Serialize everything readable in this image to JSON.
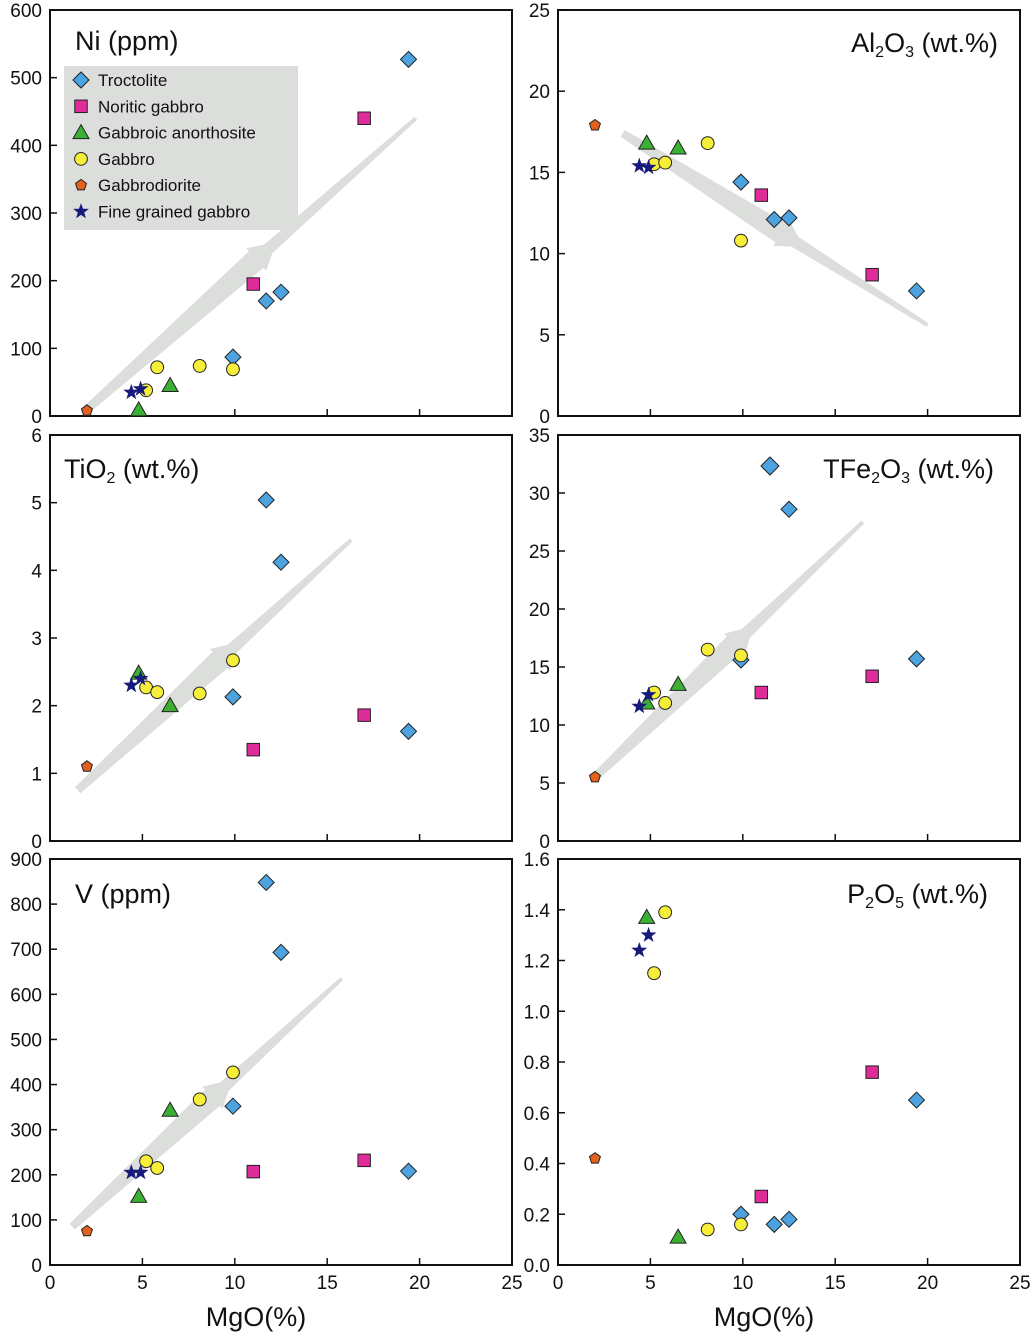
{
  "legend": {
    "items": [
      {
        "key": "troctolite",
        "label": "Troctolite"
      },
      {
        "key": "noritic",
        "label": "Noritic gabbro"
      },
      {
        "key": "anorthosite",
        "label": "Gabbroic anorthosite"
      },
      {
        "key": "gabbro",
        "label": "Gabbro"
      },
      {
        "key": "diorite",
        "label": "Gabbrodiorite"
      },
      {
        "key": "fine",
        "label": "Fine grained gabbro"
      }
    ]
  },
  "styles": {
    "troctolite": {
      "shape": "diamond",
      "color": "#4da3e0"
    },
    "noritic": {
      "shape": "square",
      "color": "#e02b9a"
    },
    "anorthosite": {
      "shape": "triangle",
      "color": "#3cb034"
    },
    "gabbro": {
      "shape": "circle",
      "color": "#f7ee3a"
    },
    "diorite": {
      "shape": "pentagon",
      "color": "#e0621e"
    },
    "fine": {
      "shape": "star",
      "color": "#161a7a"
    },
    "trend_arrow": "#dcdedc"
  },
  "chart_data": [
    {
      "id": "ni",
      "type": "scatter",
      "title": {
        "pre": "Ni (ppm)",
        "sub": "",
        "post": ""
      },
      "xlabel": "",
      "ylabel": "",
      "xlim": [
        0,
        25
      ],
      "ylim": [
        0,
        600
      ],
      "xticks": [],
      "yticks": [
        "0",
        "100",
        "200",
        "300",
        "400",
        "500",
        "600"
      ],
      "trend": {
        "from": [
          1.8,
          5
        ],
        "to": [
          19.8,
          440
        ]
      },
      "series": [
        {
          "name": "Troctolite",
          "key": "troctolite",
          "points": [
            [
              9.9,
              87
            ],
            [
              11.7,
              170
            ],
            [
              12.5,
              183
            ],
            [
              19.4,
              527
            ]
          ]
        },
        {
          "name": "Noritic gabbro",
          "key": "noritic",
          "points": [
            [
              11.0,
              195
            ],
            [
              17.0,
              440
            ]
          ]
        },
        {
          "name": "Gabbroic anorthosite",
          "key": "anorthosite",
          "points": [
            [
              4.8,
              9
            ],
            [
              6.5,
              45
            ]
          ]
        },
        {
          "name": "Gabbro",
          "key": "gabbro",
          "points": [
            [
              5.2,
              38
            ],
            [
              5.8,
              72
            ],
            [
              8.1,
              74
            ],
            [
              9.9,
              69
            ]
          ]
        },
        {
          "name": "Gabbrodiorite",
          "key": "diorite",
          "points": [
            [
              2.0,
              8
            ]
          ]
        },
        {
          "name": "Fine grained gabbro",
          "key": "fine",
          "points": [
            [
              4.4,
              35
            ],
            [
              4.9,
              40
            ]
          ]
        }
      ]
    },
    {
      "id": "al2o3",
      "type": "scatter",
      "title": {
        "pre": "Al",
        "sub": "2",
        "mid": "O",
        "sub2": "3",
        "post": " (wt.%)"
      },
      "xlabel": "",
      "ylabel": "",
      "xlim": [
        0,
        25
      ],
      "ylim": [
        0,
        25
      ],
      "xticks": [],
      "yticks": [
        "0",
        "5",
        "10",
        "15",
        "20",
        "25"
      ],
      "trend": {
        "from": [
          3.5,
          17.4
        ],
        "to": [
          20.0,
          5.6
        ]
      },
      "series": [
        {
          "name": "Troctolite",
          "key": "troctolite",
          "points": [
            [
              9.9,
              14.4
            ],
            [
              11.7,
              12.1
            ],
            [
              12.5,
              12.2
            ],
            [
              19.4,
              7.7
            ]
          ]
        },
        {
          "name": "Noritic gabbro",
          "key": "noritic",
          "points": [
            [
              11.0,
              13.6
            ],
            [
              17.0,
              8.7
            ]
          ]
        },
        {
          "name": "Gabbroic anorthosite",
          "key": "anorthosite",
          "points": [
            [
              4.8,
              16.8
            ],
            [
              6.5,
              16.5
            ]
          ]
        },
        {
          "name": "Gabbro",
          "key": "gabbro",
          "points": [
            [
              5.2,
              15.5
            ],
            [
              5.8,
              15.6
            ],
            [
              8.1,
              16.8
            ],
            [
              9.9,
              10.8
            ]
          ]
        },
        {
          "name": "Gabbrodiorite",
          "key": "diorite",
          "points": [
            [
              2.0,
              17.9
            ]
          ]
        },
        {
          "name": "Fine grained gabbro",
          "key": "fine",
          "points": [
            [
              4.4,
              15.4
            ],
            [
              4.9,
              15.3
            ]
          ]
        }
      ]
    },
    {
      "id": "tio2",
      "type": "scatter",
      "title": {
        "pre": "TiO",
        "sub": "2",
        "post": " (wt.%)"
      },
      "xlabel": "",
      "ylabel": "",
      "xlim": [
        0,
        25
      ],
      "ylim": [
        0,
        6
      ],
      "xticks": [],
      "yticks": [
        "0",
        "1",
        "2",
        "3",
        "4",
        "5",
        "6"
      ],
      "trend": {
        "from": [
          1.5,
          0.75
        ],
        "to": [
          16.3,
          4.45
        ]
      },
      "series": [
        {
          "name": "Troctolite",
          "key": "troctolite",
          "points": [
            [
              11.7,
              5.04
            ],
            [
              12.5,
              4.12
            ],
            [
              9.9,
              2.13
            ],
            [
              19.4,
              1.62
            ]
          ]
        },
        {
          "name": "Noritic gabbro",
          "key": "noritic",
          "points": [
            [
              11.0,
              1.35
            ],
            [
              17.0,
              1.86
            ]
          ]
        },
        {
          "name": "Gabbroic anorthosite",
          "key": "anorthosite",
          "points": [
            [
              4.8,
              2.48
            ],
            [
              6.5,
              2.0
            ]
          ]
        },
        {
          "name": "Gabbro",
          "key": "gabbro",
          "points": [
            [
              5.2,
              2.27
            ],
            [
              5.8,
              2.2
            ],
            [
              8.1,
              2.18
            ],
            [
              9.9,
              2.67
            ]
          ]
        },
        {
          "name": "Gabbrodiorite",
          "key": "diorite",
          "points": [
            [
              2.0,
              1.1
            ]
          ]
        },
        {
          "name": "Fine grained gabbro",
          "key": "fine",
          "points": [
            [
              4.4,
              2.3
            ],
            [
              4.9,
              2.4
            ]
          ]
        }
      ]
    },
    {
      "id": "tfe2o3",
      "type": "scatter",
      "title": {
        "pre": "TFe",
        "sub": "2",
        "mid": "O",
        "sub2": "3",
        "post": " (wt.%)"
      },
      "xlabel": "",
      "ylabel": "",
      "xlim": [
        0,
        25
      ],
      "ylim": [
        0,
        35
      ],
      "xticks": [],
      "yticks": [
        "0",
        "5",
        "10",
        "15",
        "20",
        "25",
        "30",
        "35"
      ],
      "trend": {
        "from": [
          2.0,
          5.5
        ],
        "to": [
          16.5,
          27.5
        ]
      },
      "series": [
        {
          "name": "Troctolite",
          "key": "troctolite",
          "points": [
            [
              12.5,
              28.6
            ],
            [
              9.9,
              15.6
            ],
            [
              19.4,
              15.7
            ]
          ]
        },
        {
          "name": "Noritic gabbro",
          "key": "noritic",
          "points": [
            [
              11.0,
              12.8
            ],
            [
              17.0,
              14.2
            ]
          ]
        },
        {
          "name": "Gabbroic anorthosite",
          "key": "anorthosite",
          "points": [
            [
              4.8,
              11.9
            ],
            [
              6.5,
              13.5
            ]
          ]
        },
        {
          "name": "Gabbro",
          "key": "gabbro",
          "points": [
            [
              5.2,
              12.8
            ],
            [
              5.8,
              11.9
            ],
            [
              8.1,
              16.5
            ],
            [
              9.9,
              16.0
            ]
          ]
        },
        {
          "name": "Gabbrodiorite",
          "key": "diorite",
          "points": [
            [
              2.0,
              5.5
            ]
          ]
        },
        {
          "name": "Fine grained gabbro",
          "key": "fine",
          "points": [
            [
              4.4,
              11.6
            ],
            [
              4.9,
              12.6
            ]
          ]
        }
      ],
      "legend_marker": {
        "key": "troctolite"
      }
    },
    {
      "id": "v",
      "type": "scatter",
      "title": {
        "pre": "V (ppm)",
        "sub": "",
        "post": ""
      },
      "xlabel": "MgO(%)",
      "ylabel": "",
      "xlim": [
        0,
        25
      ],
      "ylim": [
        0,
        900
      ],
      "xticks": [
        "0",
        "5",
        "10",
        "15",
        "20",
        "25"
      ],
      "yticks": [
        "0",
        "100",
        "200",
        "300",
        "400",
        "500",
        "600",
        "700",
        "800",
        "900"
      ],
      "trend": {
        "from": [
          1.2,
          85
        ],
        "to": [
          15.8,
          635
        ]
      },
      "series": [
        {
          "name": "Troctolite",
          "key": "troctolite",
          "points": [
            [
              11.7,
              848
            ],
            [
              12.5,
              693
            ],
            [
              9.9,
              352
            ],
            [
              19.4,
              208
            ]
          ]
        },
        {
          "name": "Noritic gabbro",
          "key": "noritic",
          "points": [
            [
              11.0,
              207
            ],
            [
              17.0,
              232
            ]
          ]
        },
        {
          "name": "Gabbroic anorthosite",
          "key": "anorthosite",
          "points": [
            [
              4.8,
              152
            ],
            [
              6.5,
              343
            ]
          ]
        },
        {
          "name": "Gabbro",
          "key": "gabbro",
          "points": [
            [
              5.2,
              230
            ],
            [
              5.8,
              215
            ],
            [
              8.1,
              367
            ],
            [
              9.9,
              427
            ]
          ]
        },
        {
          "name": "Gabbrodiorite",
          "key": "diorite",
          "points": [
            [
              2.0,
              75
            ]
          ]
        },
        {
          "name": "Fine grained gabbro",
          "key": "fine",
          "points": [
            [
              4.4,
              205
            ],
            [
              4.9,
              205
            ]
          ]
        }
      ]
    },
    {
      "id": "p2o5",
      "type": "scatter",
      "title": {
        "pre": "P",
        "sub": "2",
        "mid": "O",
        "sub2": "5",
        "post": " (wt.%)"
      },
      "xlabel": "MgO(%)",
      "ylabel": "",
      "xlim": [
        0,
        25
      ],
      "ylim": [
        0,
        1.6
      ],
      "xticks": [
        "0",
        "5",
        "10",
        "15",
        "20",
        "25"
      ],
      "yticks": [
        "0.0",
        "0.2",
        "0.4",
        "0.6",
        "0.8",
        "1.0",
        "1.2",
        "1.4",
        "1.6"
      ],
      "series": [
        {
          "name": "Troctolite",
          "key": "troctolite",
          "points": [
            [
              19.4,
              0.65
            ],
            [
              9.9,
              0.2
            ],
            [
              11.7,
              0.16
            ],
            [
              12.5,
              0.18
            ]
          ]
        },
        {
          "name": "Noritic gabbro",
          "key": "noritic",
          "points": [
            [
              17.0,
              0.76
            ],
            [
              11.0,
              0.27
            ]
          ]
        },
        {
          "name": "Gabbroic anorthosite",
          "key": "anorthosite",
          "points": [
            [
              4.8,
              1.37
            ],
            [
              6.5,
              0.11
            ]
          ]
        },
        {
          "name": "Gabbro",
          "key": "gabbro",
          "points": [
            [
              5.8,
              1.39
            ],
            [
              5.2,
              1.15
            ],
            [
              8.1,
              0.14
            ],
            [
              9.9,
              0.16
            ]
          ]
        },
        {
          "name": "Gabbrodiorite",
          "key": "diorite",
          "points": [
            [
              2.0,
              0.42
            ]
          ]
        },
        {
          "name": "Fine grained gabbro",
          "key": "fine",
          "points": [
            [
              4.4,
              1.24
            ],
            [
              4.9,
              1.3
            ]
          ]
        }
      ]
    }
  ]
}
